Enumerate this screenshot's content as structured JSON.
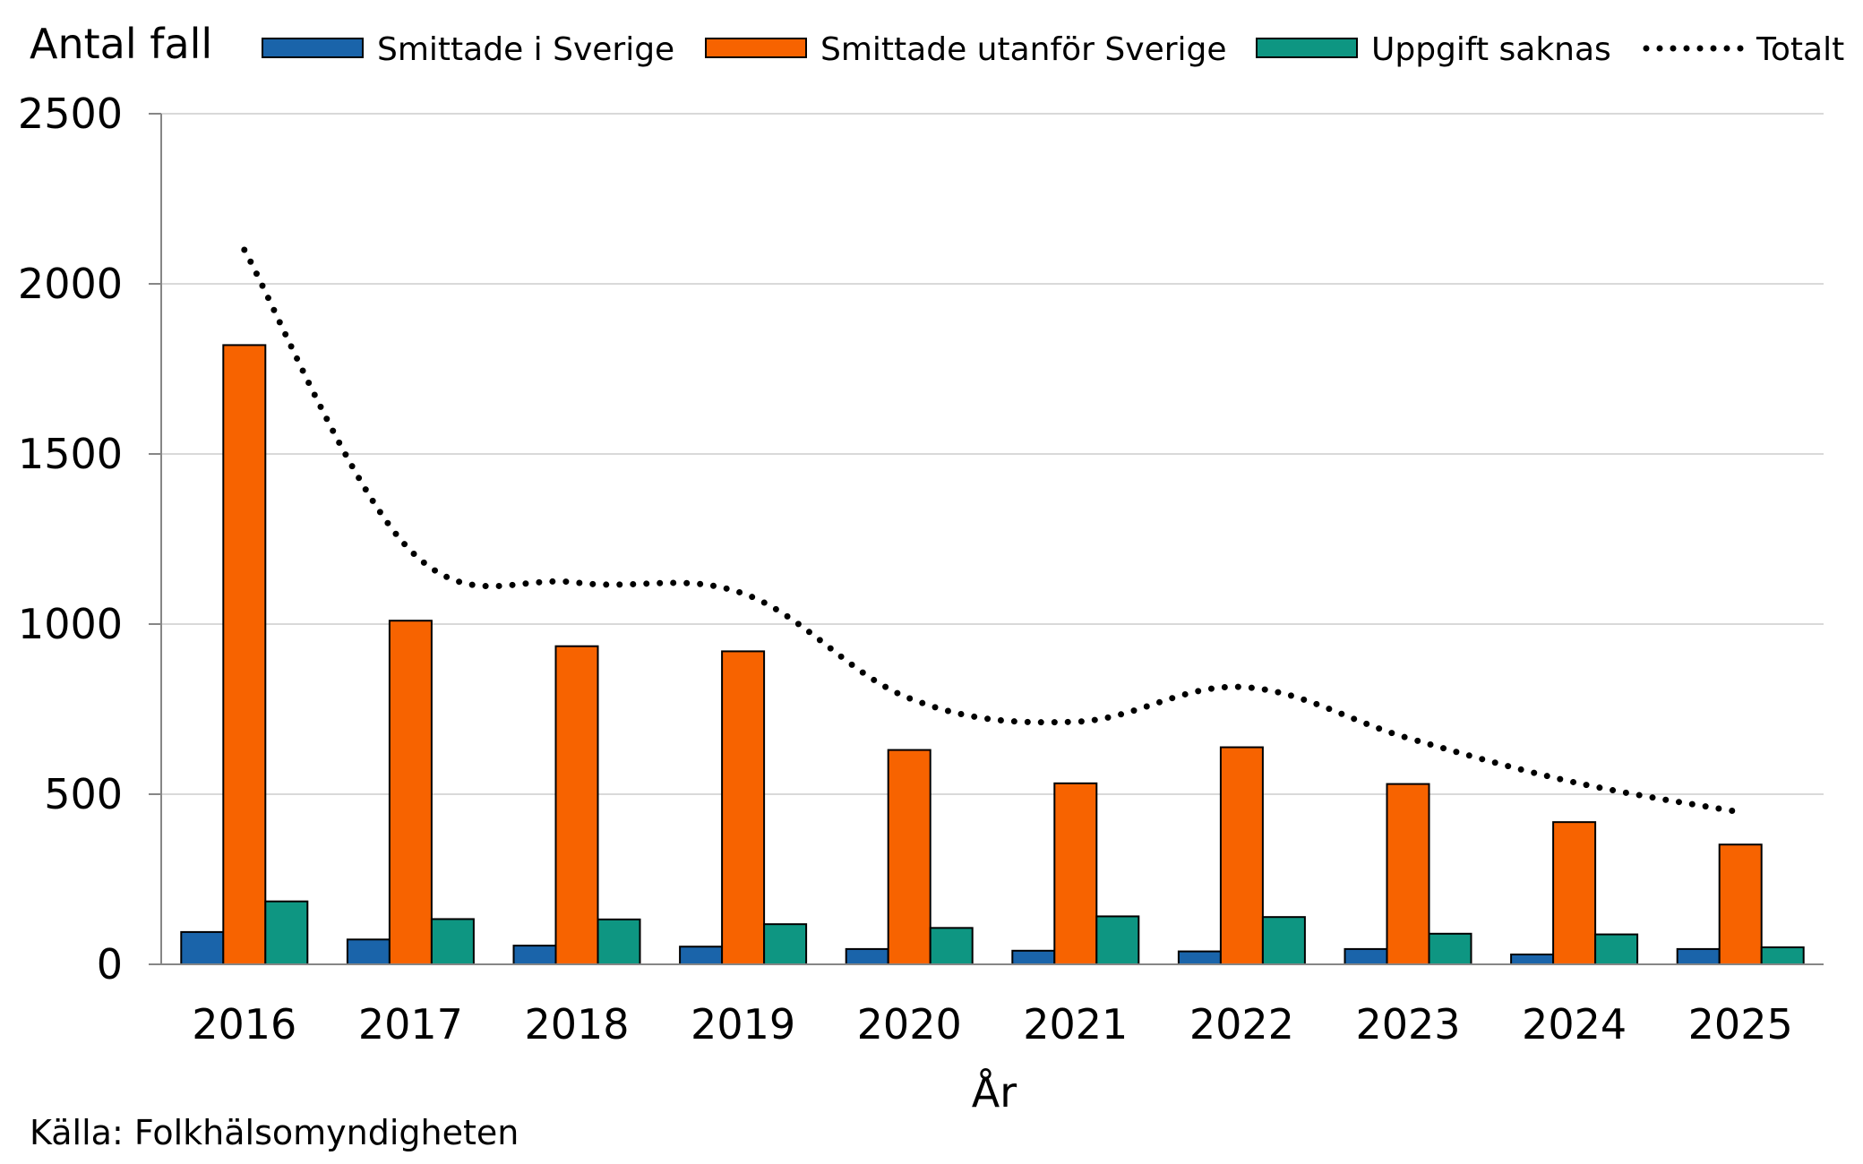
{
  "chart_data": {
    "type": "bar",
    "title": "",
    "ylabel": "Antal fall",
    "xlabel": "År",
    "source": "Källa: Folkhälsomyndigheten",
    "categories": [
      "2016",
      "2017",
      "2018",
      "2019",
      "2020",
      "2021",
      "2022",
      "2023",
      "2024",
      "2025"
    ],
    "ylim": [
      0,
      2500
    ],
    "yticks": [
      "0",
      "500",
      "1000",
      "1500",
      "2000",
      "2500"
    ],
    "grid": true,
    "legend_position": "top",
    "series": [
      {
        "name": "Smittade i Sverige",
        "kind": "bar",
        "color": "#1a64aa",
        "values": [
          95,
          73,
          55,
          52,
          45,
          40,
          38,
          45,
          29,
          45
        ]
      },
      {
        "name": "Smittade utanför Sverige",
        "kind": "bar",
        "color": "#f76300",
        "values": [
          1820,
          1010,
          935,
          920,
          630,
          532,
          638,
          530,
          418,
          352
        ]
      },
      {
        "name": "Uppgift saknas",
        "kind": "bar",
        "color": "#0e9682",
        "values": [
          185,
          133,
          132,
          118,
          107,
          141,
          139,
          90,
          88,
          50
        ]
      },
      {
        "name": "Totalt",
        "kind": "line",
        "style": "dotted",
        "color": "#000000",
        "values": [
          2100,
          1216,
          1122,
          1090,
          782,
          713,
          815,
          665,
          535,
          447
        ]
      }
    ]
  }
}
